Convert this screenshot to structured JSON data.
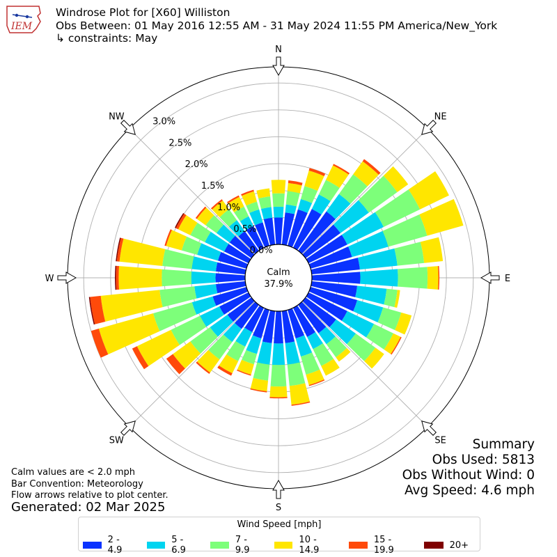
{
  "header": {
    "title": "Windrose Plot for [X60] Williston",
    "obs_between": "Obs Between: 01 May 2016 12:55 AM - 31 May 2024 11:55 PM America/New_York",
    "constraints": "↳ constraints: May",
    "logo_text": "IEM"
  },
  "summary": {
    "heading": "Summary",
    "obs_used": "Obs Used: 5813",
    "obs_without_wind": "Obs Without Wind: 0",
    "avg_speed": "Avg Speed: 4.6 mph"
  },
  "notes": {
    "calm_note": "Calm values are < 2.0 mph",
    "bar_convention": "Bar Convention: Meteorology",
    "flow_arrows": "Flow arrows relative to plot center.",
    "generated": "Generated: 02 Mar 2025"
  },
  "legend": {
    "title": "Wind Speed [mph]",
    "items": [
      {
        "label": "2 - 4.9",
        "color": "#0a32ff"
      },
      {
        "label": "5 - 6.9",
        "color": "#00d4f0"
      },
      {
        "label": "7 - 9.9",
        "color": "#7dff7a"
      },
      {
        "label": "10 - 14.9",
        "color": "#ffe600"
      },
      {
        "label": "15 - 19.9",
        "color": "#ff4a0a"
      },
      {
        "label": "20+",
        "color": "#7f0000"
      }
    ]
  },
  "chart_data": {
    "type": "windrose",
    "center_label": "Calm",
    "calm_percent": "37.9%",
    "radial_ticks": [
      "0.0%",
      "0.5%",
      "1.0%",
      "1.5%",
      "2.0%",
      "2.5%",
      "3.0%"
    ],
    "radial_tick_values": [
      0,
      0.5,
      1.0,
      1.5,
      2.0,
      2.5,
      3.0
    ],
    "rmax": 3.3,
    "direction_labels": [
      "N",
      "NE",
      "E",
      "SE",
      "S",
      "SW",
      "W",
      "NW"
    ],
    "direction_label_angles_deg": [
      0,
      45,
      90,
      135,
      180,
      225,
      270,
      315
    ],
    "speed_bins": [
      "2 - 4.9",
      "5 - 6.9",
      "7 - 9.9",
      "10 - 14.9",
      "15 - 19.9",
      "20+"
    ],
    "bin_colors": [
      "#0a32ff",
      "#00d4f0",
      "#7dff7a",
      "#ffe600",
      "#ff4a0a",
      "#7f0000"
    ],
    "directions_deg": [
      0,
      10,
      20,
      30,
      40,
      50,
      60,
      70,
      80,
      90,
      100,
      110,
      120,
      130,
      140,
      150,
      160,
      170,
      180,
      190,
      200,
      210,
      220,
      230,
      240,
      250,
      260,
      270,
      280,
      290,
      300,
      310,
      320,
      330,
      340,
      350
    ],
    "cumulative_percent": [
      [
        0.5,
        0.7,
        0.95,
        1.2,
        1.2,
        1.2
      ],
      [
        0.6,
        0.75,
        1.0,
        1.15,
        1.2,
        1.2
      ],
      [
        0.7,
        0.9,
        1.15,
        1.45,
        1.5,
        1.5
      ],
      [
        0.8,
        1.1,
        1.4,
        1.7,
        1.73,
        1.73
      ],
      [
        0.9,
        1.3,
        1.75,
        2.05,
        2.1,
        2.1
      ],
      [
        0.8,
        1.45,
        2.1,
        2.35,
        2.35,
        2.35
      ],
      [
        0.8,
        1.55,
        2.3,
        2.9,
        2.9,
        2.9
      ],
      [
        0.8,
        1.5,
        2.25,
        2.95,
        2.95,
        2.95
      ],
      [
        0.9,
        1.6,
        2.1,
        2.45,
        2.45,
        2.45
      ],
      [
        0.9,
        1.6,
        2.15,
        2.35,
        2.37,
        2.37
      ],
      [
        0.85,
        1.4,
        1.6,
        1.65,
        1.65,
        1.65
      ],
      [
        0.9,
        1.4,
        1.75,
        1.95,
        1.95,
        1.95
      ],
      [
        0.8,
        1.35,
        1.75,
        1.9,
        1.92,
        1.92
      ],
      [
        0.7,
        1.15,
        1.6,
        1.8,
        1.8,
        1.8
      ],
      [
        0.65,
        0.9,
        1.2,
        1.3,
        1.3,
        1.3
      ],
      [
        0.6,
        0.85,
        1.2,
        1.4,
        1.4,
        1.4
      ],
      [
        0.55,
        0.9,
        1.25,
        1.45,
        1.47,
        1.47
      ],
      [
        0.6,
        1.0,
        1.4,
        1.75,
        1.77,
        1.77
      ],
      [
        0.6,
        1.0,
        1.4,
        1.6,
        1.62,
        1.62
      ],
      [
        0.6,
        1.0,
        1.3,
        1.5,
        1.52,
        1.52
      ],
      [
        0.55,
        0.85,
        1.05,
        1.25,
        1.27,
        1.27
      ],
      [
        0.5,
        0.8,
        1.1,
        1.35,
        1.4,
        1.4
      ],
      [
        0.55,
        0.85,
        1.25,
        1.55,
        1.58,
        1.58
      ],
      [
        0.55,
        0.95,
        1.4,
        1.8,
        1.95,
        1.95
      ],
      [
        0.6,
        1.0,
        1.6,
        2.3,
        2.4,
        2.4
      ],
      [
        0.65,
        1.05,
        1.8,
        2.85,
        3.0,
        3.0
      ],
      [
        0.55,
        0.95,
        1.6,
        2.7,
        2.9,
        2.92
      ],
      [
        0.55,
        1.0,
        1.55,
        2.35,
        2.4,
        2.42
      ],
      [
        0.55,
        1.0,
        1.55,
        2.35,
        2.4,
        2.42
      ],
      [
        0.55,
        0.95,
        1.25,
        1.55,
        1.58,
        1.58
      ],
      [
        0.5,
        0.9,
        1.2,
        1.45,
        1.5,
        1.52
      ],
      [
        0.5,
        0.8,
        1.05,
        1.25,
        1.28,
        1.28
      ],
      [
        0.45,
        0.7,
        0.95,
        1.15,
        1.18,
        1.18
      ],
      [
        0.45,
        0.65,
        0.85,
        1.05,
        1.08,
        1.08
      ],
      [
        0.45,
        0.7,
        0.85,
        1.05,
        1.08,
        1.08
      ],
      [
        0.5,
        0.7,
        0.9,
        1.05,
        1.05,
        1.05
      ]
    ]
  }
}
